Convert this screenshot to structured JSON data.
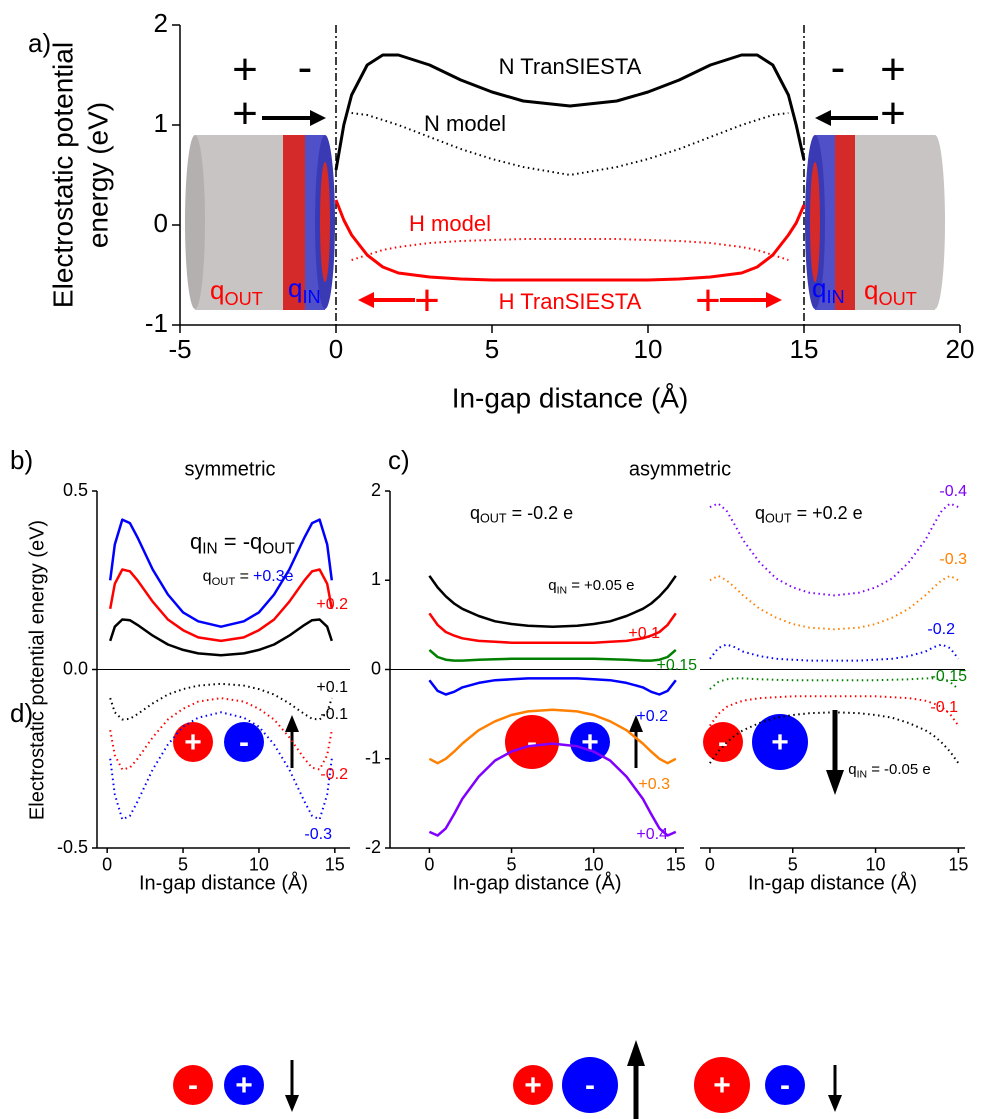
{
  "panel_labels": [
    "a)",
    "b)",
    "c)",
    "d)"
  ],
  "panel_d": {
    "signs": [
      [
        "+",
        "-"
      ],
      [
        "-",
        "+"
      ],
      [
        "-",
        "+"
      ],
      [
        "-",
        "+"
      ],
      [
        "+",
        "-"
      ],
      [
        "+",
        "-"
      ]
    ]
  },
  "chart_data": [
    {
      "type": "line",
      "xlabel": "In-gap distance (Å)",
      "ylabel": [
        "Electrostatic potential",
        "energy (eV)"
      ],
      "xlim": [
        -5,
        20
      ],
      "ylim": [
        -1,
        2
      ],
      "xticks": [
        -5,
        0,
        5,
        10,
        15,
        20
      ],
      "yticks": [
        -1,
        0,
        1,
        2
      ],
      "vlines": [
        0,
        15
      ],
      "x": [
        0,
        0.25,
        0.5,
        1,
        1.5,
        2,
        3,
        4,
        5,
        6,
        7.5,
        9,
        10,
        11,
        12,
        13,
        13.5,
        14,
        14.5,
        14.75,
        15
      ],
      "series": [
        {
          "name": "N TranSIESTA",
          "color": "#000000",
          "linestyle": "solid",
          "values": [
            0.55,
            1.0,
            1.3,
            1.6,
            1.7,
            1.7,
            1.6,
            1.45,
            1.33,
            1.24,
            1.19,
            1.24,
            1.33,
            1.45,
            1.6,
            1.7,
            1.7,
            1.6,
            1.3,
            1.0,
            0.65
          ]
        },
        {
          "name": "N model",
          "color": "#000000",
          "linestyle": "dotted",
          "values": [
            null,
            null,
            1.12,
            1.1,
            1.05,
            1.0,
            0.88,
            0.76,
            0.66,
            0.58,
            0.5,
            0.58,
            0.66,
            0.76,
            0.88,
            1.0,
            1.05,
            1.1,
            1.12,
            null,
            null
          ]
        },
        {
          "name": "H model",
          "color": "#ff0000",
          "linestyle": "dotted",
          "values": [
            null,
            null,
            -0.35,
            -0.3,
            -0.25,
            -0.22,
            -0.18,
            -0.16,
            -0.15,
            -0.14,
            -0.14,
            -0.14,
            -0.15,
            -0.16,
            -0.18,
            -0.22,
            -0.25,
            -0.3,
            -0.35,
            null,
            null
          ]
        },
        {
          "name": "H TranSIESTA",
          "color": "#ff0000",
          "linestyle": "solid",
          "values": [
            0.25,
            0.05,
            -0.1,
            -0.3,
            -0.42,
            -0.48,
            -0.52,
            -0.54,
            -0.55,
            -0.55,
            -0.55,
            -0.55,
            -0.55,
            -0.54,
            -0.52,
            -0.48,
            -0.42,
            -0.3,
            -0.1,
            0.02,
            0.2
          ]
        }
      ],
      "annotations": [
        {
          "parts": [
            {
              "text": "+"
            }
          ],
          "color": "#000000"
        },
        {
          "parts": [
            {
              "text": "-"
            }
          ],
          "color": "#000000"
        },
        {
          "parts": [
            {
              "text": "+"
            }
          ],
          "color": "#000000"
        },
        {
          "parts": [
            {
              "text": "-"
            }
          ],
          "color": "#000000"
        },
        {
          "parts": [
            {
              "text": "+"
            }
          ],
          "color": "#000000"
        },
        {
          "parts": [
            {
              "text": "+"
            }
          ],
          "color": "#000000"
        },
        {
          "parts": [
            {
              "text": "+"
            }
          ],
          "color": "#ff0000"
        },
        {
          "parts": [
            {
              "text": "+"
            }
          ],
          "color": "#ff0000"
        },
        {
          "parts": [
            {
              "text": "q"
            },
            {
              "sub": "OUT"
            }
          ],
          "color": "#ff0000"
        },
        {
          "parts": [
            {
              "text": "q"
            },
            {
              "sub": "IN"
            }
          ],
          "color": "#0000ff"
        },
        {
          "parts": [
            {
              "text": "q"
            },
            {
              "sub": "IN"
            }
          ],
          "color": "#0000ff"
        },
        {
          "parts": [
            {
              "text": "q"
            },
            {
              "sub": "OUT"
            }
          ],
          "color": "#ff0000"
        }
      ]
    },
    {
      "type": "line",
      "title": "symmetric",
      "xlabel": "In-gap distance (Å)",
      "ylabel": [
        "Electrostatic potential energy (eV)"
      ],
      "xlim": [
        -0.67,
        16
      ],
      "ylim": [
        -0.5,
        0.5
      ],
      "xticks": [
        0,
        5,
        10,
        15
      ],
      "yticks": [
        -0.5,
        {
          "value": 0,
          "label": "0.0"
        },
        0.5
      ],
      "hline": 0,
      "x": [
        0.2,
        0.5,
        1,
        1.5,
        2,
        3,
        4,
        5,
        6,
        7.5,
        9,
        10,
        11,
        12,
        13,
        13.5,
        14,
        14.5,
        14.8
      ],
      "series": [
        {
          "name": "+0.3e",
          "color": "#0000ff",
          "linestyle": "solid",
          "values": [
            0.25,
            0.35,
            0.42,
            0.41,
            0.37,
            0.28,
            0.21,
            0.16,
            0.135,
            0.12,
            0.135,
            0.16,
            0.21,
            0.28,
            0.37,
            0.41,
            0.42,
            0.35,
            0.25
          ]
        },
        {
          "name": "+0.2",
          "color": "#ff0000",
          "linestyle": "solid",
          "values": [
            0.17,
            0.24,
            0.28,
            0.275,
            0.25,
            0.19,
            0.14,
            0.11,
            0.09,
            0.08,
            0.09,
            0.11,
            0.14,
            0.19,
            0.25,
            0.275,
            0.28,
            0.24,
            0.17
          ]
        },
        {
          "name": "+0.1",
          "color": "#000000",
          "linestyle": "solid",
          "values": [
            0.08,
            0.12,
            0.14,
            0.138,
            0.125,
            0.095,
            0.07,
            0.055,
            0.045,
            0.04,
            0.045,
            0.055,
            0.07,
            0.095,
            0.125,
            0.138,
            0.14,
            0.12,
            0.08
          ]
        },
        {
          "name": "-0.1",
          "color": "#000000",
          "linestyle": "dotted",
          "values": [
            -0.08,
            -0.12,
            -0.14,
            -0.138,
            -0.125,
            -0.095,
            -0.07,
            -0.055,
            -0.045,
            -0.04,
            -0.045,
            -0.055,
            -0.07,
            -0.095,
            -0.125,
            -0.138,
            -0.14,
            -0.12,
            -0.08
          ]
        },
        {
          "name": "-0.2",
          "color": "#ff0000",
          "linestyle": "dotted",
          "values": [
            -0.17,
            -0.24,
            -0.28,
            -0.275,
            -0.25,
            -0.19,
            -0.14,
            -0.11,
            -0.09,
            -0.08,
            -0.09,
            -0.11,
            -0.14,
            -0.19,
            -0.25,
            -0.275,
            -0.28,
            -0.24,
            -0.17
          ]
        },
        {
          "name": "-0.3",
          "color": "#0000ff",
          "linestyle": "dotted",
          "values": [
            -0.25,
            -0.35,
            -0.42,
            -0.41,
            -0.37,
            -0.28,
            -0.21,
            -0.16,
            -0.135,
            -0.12,
            -0.135,
            -0.16,
            -0.21,
            -0.28,
            -0.37,
            -0.41,
            -0.42,
            -0.35,
            -0.25
          ]
        }
      ],
      "annotations": [
        {
          "parts": [
            {
              "text": "q"
            },
            {
              "sub": "IN"
            },
            {
              "text": " = -q"
            },
            {
              "sub": "OUT"
            }
          ],
          "color": "#000000"
        },
        {
          "parts": [
            {
              "text": "q"
            },
            {
              "sub": "OUT"
            },
            {
              "text": " ="
            }
          ],
          "color": "#000000"
        }
      ]
    },
    {
      "type": "line",
      "title": "asymmetric",
      "xlabel": "In-gap distance (Å)",
      "xlim": [
        -2.4,
        15.5
      ],
      "ylim": [
        -2,
        2
      ],
      "xticks": [
        0,
        5,
        10,
        15
      ],
      "yticks": [
        -2,
        -1,
        0,
        1,
        2
      ],
      "hline": 0,
      "x": [
        0,
        0.5,
        1,
        1.5,
        2,
        3,
        4,
        5,
        6,
        7.5,
        9,
        10,
        11,
        12,
        13,
        13.5,
        14,
        14.5,
        15
      ],
      "series": [
        {
          "name": "+0.05 e",
          "color": "#000000",
          "linestyle": "solid",
          "values": [
            1.05,
            0.92,
            0.82,
            0.74,
            0.68,
            0.6,
            0.54,
            0.51,
            0.49,
            0.48,
            0.49,
            0.51,
            0.54,
            0.6,
            0.68,
            0.74,
            0.82,
            0.92,
            1.05
          ]
        },
        {
          "name": "+0.1",
          "color": "#ff0000",
          "linestyle": "solid",
          "values": [
            0.63,
            0.5,
            0.42,
            0.38,
            0.35,
            0.32,
            0.31,
            0.3,
            0.3,
            0.3,
            0.3,
            0.3,
            0.31,
            0.32,
            0.35,
            0.38,
            0.42,
            0.5,
            0.63
          ]
        },
        {
          "name": "+0.15",
          "color": "#008000",
          "linestyle": "solid",
          "values": [
            0.22,
            0.14,
            0.11,
            0.1,
            0.1,
            0.11,
            0.115,
            0.12,
            0.12,
            0.12,
            0.12,
            0.12,
            0.115,
            0.11,
            0.1,
            0.1,
            0.11,
            0.14,
            0.22
          ]
        },
        {
          "name": "+0.2",
          "color": "#0000ff",
          "linestyle": "solid",
          "values": [
            -0.12,
            -0.24,
            -0.28,
            -0.25,
            -0.2,
            -0.15,
            -0.12,
            -0.11,
            -0.1,
            -0.1,
            -0.1,
            -0.11,
            -0.12,
            -0.15,
            -0.2,
            -0.25,
            -0.28,
            -0.24,
            -0.12
          ]
        },
        {
          "name": "+0.3",
          "color": "#ff8000",
          "linestyle": "solid",
          "values": [
            -1.0,
            -1.05,
            -1.0,
            -0.92,
            -0.83,
            -0.68,
            -0.58,
            -0.51,
            -0.47,
            -0.45,
            -0.47,
            -0.51,
            -0.58,
            -0.68,
            -0.83,
            -0.92,
            -1.0,
            -1.05,
            -1.0
          ]
        },
        {
          "name": "+0.4",
          "color": "#8000ff",
          "linestyle": "solid",
          "values": [
            -1.82,
            -1.86,
            -1.78,
            -1.62,
            -1.45,
            -1.2,
            -1.02,
            -0.92,
            -0.86,
            -0.83,
            -0.86,
            -0.92,
            -1.02,
            -1.2,
            -1.45,
            -1.62,
            -1.78,
            -1.86,
            -1.82
          ]
        }
      ],
      "annotations": [
        {
          "parts": [
            {
              "text": "q"
            },
            {
              "sub": "OUT"
            },
            {
              "text": " = -0.2 e"
            }
          ],
          "color": "#000000"
        },
        {
          "parts": [
            {
              "text": "q"
            },
            {
              "sub": "IN"
            },
            {
              "text": " ="
            }
          ],
          "color": "#000000"
        }
      ]
    },
    {
      "type": "line",
      "xlabel": "In-gap distance (Å)",
      "xlim": [
        -0.6,
        15.4
      ],
      "ylim": [
        -2,
        2
      ],
      "xticks": [
        0,
        5,
        10,
        15
      ],
      "hline": 0,
      "x": [
        0,
        0.5,
        1,
        1.5,
        2,
        3,
        4,
        5,
        6,
        7.5,
        9,
        10,
        11,
        12,
        13,
        13.5,
        14,
        14.5,
        15
      ],
      "series": [
        {
          "name": "-0.05 e",
          "color": "#000000",
          "linestyle": "dotted",
          "values": [
            -1.05,
            -0.92,
            -0.82,
            -0.74,
            -0.68,
            -0.6,
            -0.54,
            -0.51,
            -0.49,
            -0.48,
            -0.49,
            -0.51,
            -0.54,
            -0.6,
            -0.68,
            -0.74,
            -0.82,
            -0.92,
            -1.05
          ]
        },
        {
          "name": "-0.1",
          "color": "#ff0000",
          "linestyle": "dotted",
          "values": [
            -0.63,
            -0.5,
            -0.42,
            -0.38,
            -0.35,
            -0.32,
            -0.31,
            -0.3,
            -0.3,
            -0.3,
            -0.3,
            -0.3,
            -0.31,
            -0.32,
            -0.35,
            -0.38,
            -0.42,
            -0.5,
            -0.63
          ]
        },
        {
          "name": "-0.15",
          "color": "#008000",
          "linestyle": "dotted",
          "values": [
            -0.22,
            -0.14,
            -0.11,
            -0.1,
            -0.1,
            -0.11,
            -0.115,
            -0.12,
            -0.12,
            -0.12,
            -0.12,
            -0.12,
            -0.115,
            -0.11,
            -0.1,
            -0.1,
            -0.11,
            -0.14,
            -0.22
          ]
        },
        {
          "name": "-0.2",
          "color": "#0000ff",
          "linestyle": "dotted",
          "values": [
            0.12,
            0.24,
            0.28,
            0.25,
            0.2,
            0.15,
            0.12,
            0.11,
            0.1,
            0.1,
            0.1,
            0.11,
            0.12,
            0.15,
            0.2,
            0.25,
            0.28,
            0.24,
            0.12
          ]
        },
        {
          "name": "-0.3",
          "color": "#ff8000",
          "linestyle": "dotted",
          "values": [
            1.0,
            1.05,
            1.0,
            0.92,
            0.83,
            0.68,
            0.58,
            0.51,
            0.47,
            0.45,
            0.47,
            0.51,
            0.58,
            0.68,
            0.83,
            0.92,
            1.0,
            1.05,
            1.0
          ]
        },
        {
          "name": "-0.4",
          "color": "#8000ff",
          "linestyle": "dotted",
          "values": [
            1.82,
            1.86,
            1.78,
            1.62,
            1.45,
            1.2,
            1.02,
            0.92,
            0.86,
            0.83,
            0.86,
            0.92,
            1.02,
            1.2,
            1.45,
            1.62,
            1.78,
            1.86,
            1.82
          ]
        }
      ],
      "annotations": [
        {
          "parts": [
            {
              "text": "q"
            },
            {
              "sub": "OUT"
            },
            {
              "text": " = +0.2 e"
            }
          ],
          "color": "#000000"
        },
        {
          "parts": [
            {
              "text": "q"
            },
            {
              "sub": "IN"
            },
            {
              "text": " ="
            }
          ],
          "color": "#000000"
        }
      ]
    }
  ]
}
